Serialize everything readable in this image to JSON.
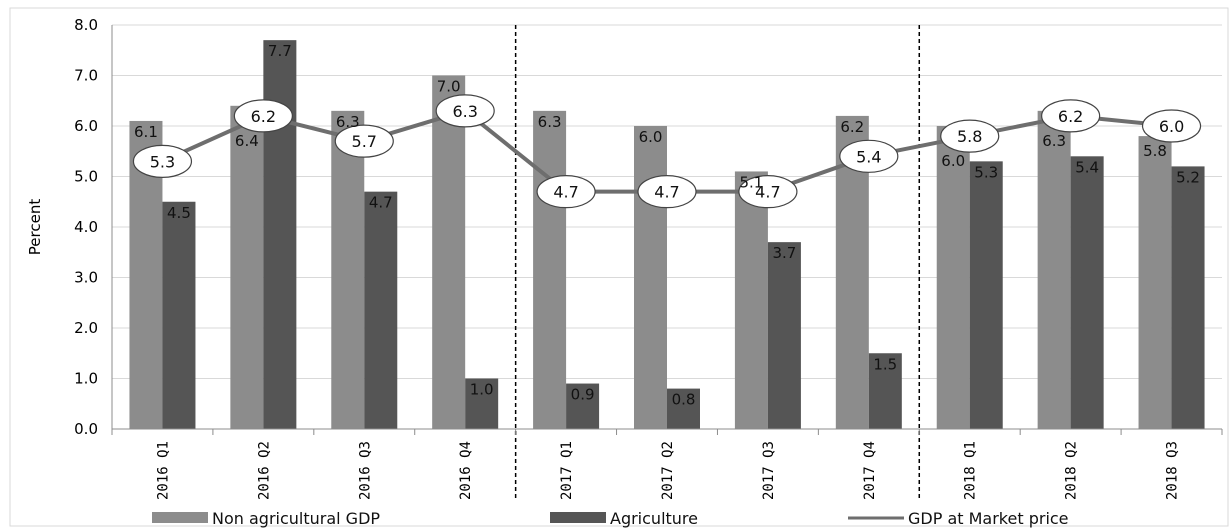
{
  "chart_data": {
    "type": "bar",
    "ylabel": "Percent",
    "xlabel": "",
    "ylim": [
      0,
      8
    ],
    "yticks": [
      "0.0",
      "1.0",
      "2.0",
      "3.0",
      "4.0",
      "5.0",
      "6.0",
      "7.0",
      "8.0"
    ],
    "categories": [
      "2016 Q1",
      "2016 Q2",
      "2016 Q3",
      "2016 Q4",
      "2017 Q1",
      "2017 Q2",
      "2017 Q3",
      "2017 Q4",
      "2018 Q1",
      "2018 Q2",
      "2018 Q3"
    ],
    "year_separators_after": [
      "2016 Q4",
      "2017 Q4"
    ],
    "series": [
      {
        "name": "Non agricultural GDP",
        "kind": "bar",
        "color": "#8c8c8c",
        "values": [
          6.1,
          6.4,
          6.3,
          7.0,
          6.3,
          6.0,
          5.1,
          6.2,
          6.0,
          6.3,
          5.8
        ],
        "labels": [
          "6.1",
          "6.4",
          "6.3",
          "7.0",
          "6.3",
          "6.0",
          "5.1",
          "6.2",
          "6.0",
          "6.3",
          "5.8"
        ]
      },
      {
        "name": "Agriculture",
        "kind": "bar",
        "color": "#555555",
        "values": [
          4.5,
          7.7,
          4.7,
          1.0,
          0.9,
          0.8,
          3.7,
          1.5,
          5.3,
          5.4,
          5.2
        ],
        "labels": [
          "4.5",
          "7.7",
          "4.7",
          "1.0",
          "0.9",
          "0.8",
          "3.7",
          "1.5",
          "5.3",
          "5.4",
          "5.2"
        ]
      },
      {
        "name": "GDP at Market price",
        "kind": "line",
        "color": "#6e6e6e",
        "values": [
          5.3,
          6.2,
          5.7,
          6.3,
          4.7,
          4.7,
          4.7,
          5.4,
          5.8,
          6.2,
          6.0
        ],
        "labels": [
          "5.3",
          "6.2",
          "5.7",
          "6.3",
          "4.7",
          "4.7",
          "4.7",
          "5.4",
          "5.8",
          "6.2",
          "6.0"
        ]
      }
    ],
    "legend": {
      "placement": "bottom",
      "entries": [
        "Non agricultural GDP",
        "Agriculture",
        "GDP at Market price"
      ]
    },
    "grid": "horizontal"
  }
}
